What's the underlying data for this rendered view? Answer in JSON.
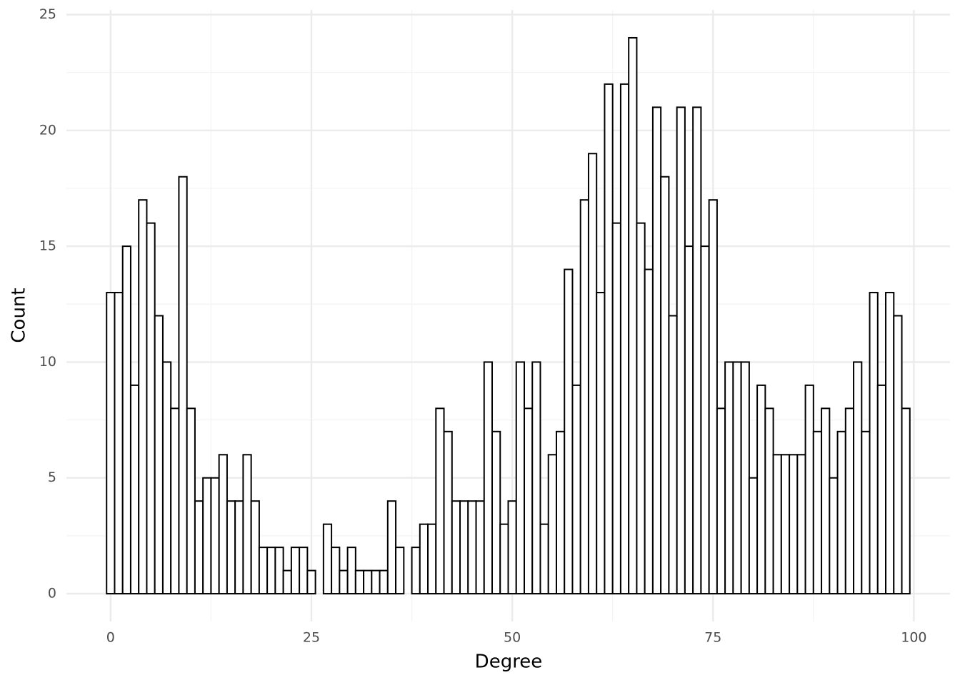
{
  "chart_data": {
    "type": "histogram",
    "x_label": "Degree",
    "y_label": "Count",
    "bins": [
      -0.5,
      0.5,
      1.5,
      2.5,
      3.5,
      4.5,
      5.5,
      6.5,
      7.5,
      8.5,
      9.5,
      10.5,
      11.5,
      12.5,
      13.5,
      14.5,
      15.5,
      16.5,
      17.5,
      18.5,
      19.5,
      20.5,
      21.5,
      22.5,
      23.5,
      24.5,
      25.5,
      26.5,
      27.5,
      28.5,
      29.5,
      30.5,
      31.5,
      32.5,
      33.5,
      34.5,
      35.5,
      36.5,
      37.5,
      38.5,
      39.5,
      40.5,
      41.5,
      42.5,
      43.5,
      44.5,
      45.5,
      46.5,
      47.5,
      48.5,
      49.5,
      50.5,
      51.5,
      52.5,
      53.5,
      54.5,
      55.5,
      56.5,
      57.5,
      58.5,
      59.5,
      60.5,
      61.5,
      62.5,
      63.5,
      64.5,
      65.5,
      66.5,
      67.5,
      68.5,
      69.5,
      70.5,
      71.5,
      72.5,
      73.5,
      74.5,
      75.5,
      76.5,
      77.5,
      78.5,
      79.5,
      80.5,
      81.5,
      82.5,
      83.5,
      84.5,
      85.5,
      86.5,
      87.5,
      88.5,
      89.5,
      90.5,
      91.5,
      92.5,
      93.5,
      94.5,
      95.5,
      96.5,
      97.5,
      98.5,
      99.5
    ],
    "values": [
      13,
      13,
      15,
      9,
      17,
      16,
      12,
      10,
      8,
      18,
      8,
      4,
      5,
      5,
      6,
      4,
      4,
      6,
      4,
      2,
      2,
      2,
      1,
      2,
      2,
      1,
      0,
      3,
      2,
      1,
      2,
      1,
      1,
      1,
      1,
      4,
      2,
      0,
      2,
      3,
      3,
      8,
      7,
      4,
      4,
      4,
      4,
      10,
      7,
      3,
      4,
      10,
      8,
      10,
      3,
      6,
      7,
      14,
      9,
      17,
      19,
      13,
      22,
      16,
      22,
      24,
      16,
      14,
      21,
      18,
      12,
      21,
      15,
      21,
      15,
      17,
      8,
      10,
      10,
      10,
      5,
      9,
      8,
      6,
      6,
      6,
      6,
      9,
      7,
      8,
      5,
      7,
      8,
      10,
      7,
      13,
      9,
      13,
      12,
      8
    ],
    "color": "#ffffff",
    "edge_color": "#000000",
    "xlim": [
      -5.5,
      104.5
    ],
    "xticks": [
      0,
      25,
      50,
      75,
      100
    ],
    "xminor_ticks": [
      12.5,
      37.5,
      62.5,
      87.5
    ],
    "ylim": [
      -1.2,
      25.2
    ],
    "yticks": [
      0,
      5,
      10,
      15,
      20,
      25
    ],
    "yminor_ticks": [
      2.5,
      7.5,
      12.5,
      17.5,
      22.5
    ],
    "grid": true
  }
}
